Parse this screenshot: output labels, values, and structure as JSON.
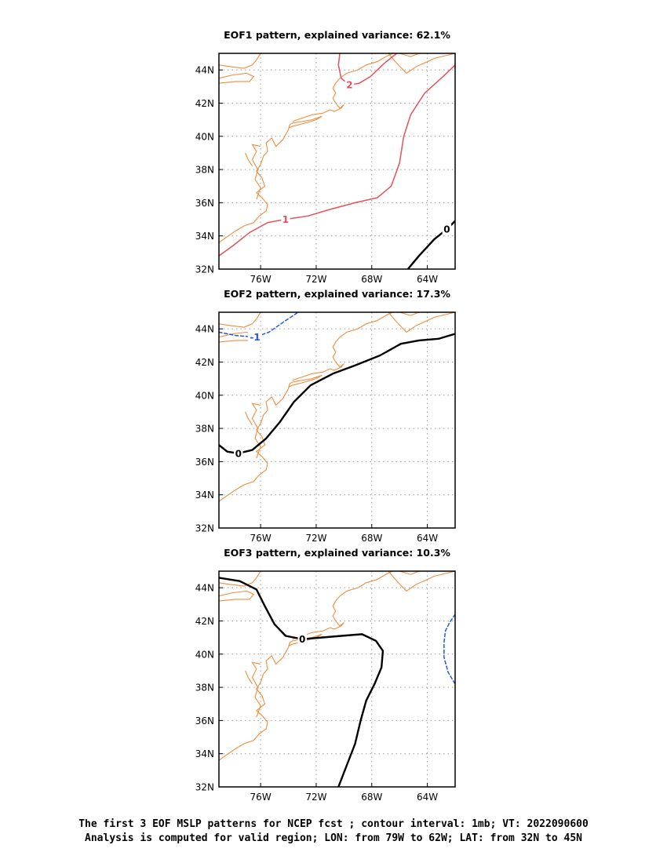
{
  "panels": [
    {
      "title": "EOF1 pattern, explained variance: 62.1%",
      "contours": [
        {
          "label": "2",
          "color": "#e8505a",
          "style": "solid",
          "points": [
            [
              -70.3,
              45.0
            ],
            [
              -70.4,
              44.3
            ],
            [
              -70.2,
              43.5
            ],
            [
              -69.6,
              43.1
            ],
            [
              -68.9,
              43.2
            ],
            [
              -68.1,
              43.6
            ],
            [
              -67.1,
              44.4
            ],
            [
              -66.2,
              45.0
            ]
          ],
          "label_at": [
            -69.6,
            43.1
          ]
        },
        {
          "label": "1",
          "color": "#e8505a",
          "style": "solid",
          "points": [
            [
              -79.0,
              32.8
            ],
            [
              -78.0,
              33.4
            ],
            [
              -76.8,
              34.2
            ],
            [
              -75.5,
              34.8
            ],
            [
              -74.2,
              35.0
            ],
            [
              -72.6,
              35.2
            ],
            [
              -71.0,
              35.6
            ],
            [
              -69.2,
              36.0
            ],
            [
              -67.6,
              36.3
            ],
            [
              -66.6,
              37.0
            ],
            [
              -66.0,
              38.4
            ],
            [
              -65.7,
              40.0
            ],
            [
              -65.2,
              41.3
            ],
            [
              -64.2,
              42.6
            ],
            [
              -63.0,
              43.5
            ],
            [
              -62.0,
              44.3
            ]
          ],
          "label_at": [
            -74.2,
            35.0
          ]
        },
        {
          "label": "0",
          "color": "#000000",
          "style": "solid",
          "points": [
            [
              -65.4,
              32.0
            ],
            [
              -64.6,
              32.8
            ],
            [
              -63.5,
              33.8
            ],
            [
              -62.6,
              34.4
            ],
            [
              -62.0,
              34.9
            ]
          ],
          "label_at": [
            -62.6,
            34.4
          ]
        }
      ]
    },
    {
      "title": "EOF2 pattern, explained variance: 17.3%",
      "contours": [
        {
          "label": "-1",
          "color": "#2255ee",
          "style": "dashed",
          "points": [
            [
              -79.0,
              43.8
            ],
            [
              -77.8,
              43.6
            ],
            [
              -76.4,
              43.5
            ],
            [
              -75.4,
              43.8
            ],
            [
              -74.2,
              44.5
            ],
            [
              -73.3,
              45.0
            ]
          ],
          "label_at": [
            -76.4,
            43.5
          ]
        },
        {
          "label": "0",
          "color": "#000000",
          "style": "solid",
          "points": [
            [
              -79.0,
              37.0
            ],
            [
              -78.4,
              36.6
            ],
            [
              -77.6,
              36.5
            ],
            [
              -76.6,
              36.7
            ],
            [
              -75.6,
              37.4
            ],
            [
              -74.6,
              38.4
            ],
            [
              -73.6,
              39.6
            ],
            [
              -72.4,
              40.6
            ],
            [
              -70.8,
              41.3
            ],
            [
              -69.2,
              41.8
            ],
            [
              -67.4,
              42.4
            ],
            [
              -65.9,
              43.1
            ],
            [
              -64.6,
              43.3
            ],
            [
              -63.2,
              43.4
            ],
            [
              -62.0,
              43.7
            ]
          ],
          "label_at": [
            -77.6,
            36.5
          ]
        }
      ]
    },
    {
      "title": "EOF3 pattern, explained variance: 10.3%",
      "contours": [
        {
          "label": "0",
          "color": "#000000",
          "style": "solid",
          "points": [
            [
              -79.0,
              44.6
            ],
            [
              -77.5,
              44.4
            ],
            [
              -76.3,
              43.9
            ],
            [
              -75.7,
              42.9
            ],
            [
              -75.0,
              41.8
            ],
            [
              -74.2,
              41.1
            ],
            [
              -73.0,
              40.9
            ],
            [
              -71.6,
              41.0
            ],
            [
              -70.2,
              41.1
            ],
            [
              -68.7,
              41.2
            ],
            [
              -67.7,
              40.8
            ],
            [
              -67.2,
              40.2
            ],
            [
              -67.3,
              39.2
            ],
            [
              -67.8,
              38.2
            ],
            [
              -68.4,
              37.2
            ],
            [
              -68.8,
              36.0
            ],
            [
              -69.2,
              34.6
            ],
            [
              -69.8,
              33.3
            ],
            [
              -70.4,
              32.0
            ]
          ],
          "label_at": [
            -73.0,
            40.9
          ]
        },
        {
          "label": "",
          "color": "#2255ee",
          "style": "dashed",
          "points": [
            [
              -62.0,
              42.4
            ],
            [
              -62.4,
              41.9
            ],
            [
              -62.7,
              41.4
            ],
            [
              -62.8,
              40.7
            ],
            [
              -62.8,
              39.8
            ],
            [
              -62.5,
              38.9
            ],
            [
              -62.0,
              38.2
            ]
          ],
          "label_at": null
        }
      ]
    }
  ],
  "map": {
    "lon_range": [
      -79,
      -62
    ],
    "lat_range": [
      32,
      45
    ],
    "x_ticks": [
      "76W",
      "72W",
      "68W",
      "64W"
    ],
    "x_tick_values": [
      -76,
      -72,
      -68,
      -64
    ],
    "y_ticks": [
      "32N",
      "34N",
      "36N",
      "38N",
      "40N",
      "42N",
      "44N"
    ],
    "y_tick_values": [
      32,
      34,
      36,
      38,
      40,
      42,
      44
    ],
    "coast_color": "#f08c3c",
    "grid_color": "#999999"
  },
  "caption": {
    "line1": "The first 3 EOF MSLP patterns for NCEP fcst ; contour interval: 1mb; VT: 2022090600",
    "line2": "Analysis is computed for valid region; LON: from 79W to 62W; LAT: from 32N to 45N"
  }
}
